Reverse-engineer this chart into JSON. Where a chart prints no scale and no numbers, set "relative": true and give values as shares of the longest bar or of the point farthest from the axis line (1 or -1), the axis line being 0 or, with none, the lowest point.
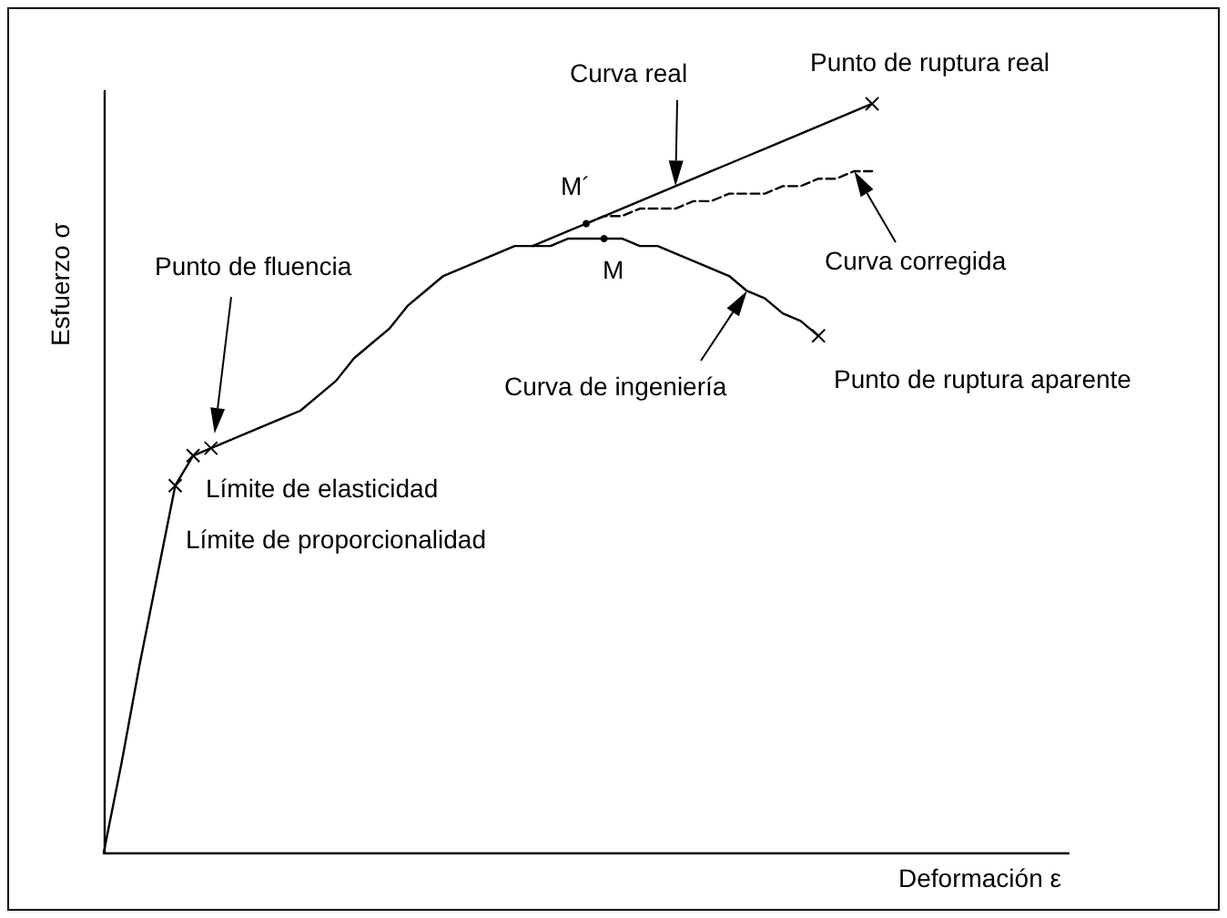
{
  "chart_data": {
    "type": "line",
    "relative": true,
    "xlabel": "Deformación ε",
    "ylabel": "Esfuerzo σ",
    "marker": "none",
    "categories": [
      null,
      null,
      null,
      null,
      null,
      null,
      null,
      null,
      null,
      null,
      null,
      null,
      null,
      null,
      null,
      null,
      null,
      null,
      null,
      null,
      null,
      null,
      null,
      null,
      null,
      null,
      null,
      null,
      null,
      null,
      null,
      null,
      null,
      null,
      null,
      null,
      null,
      null,
      null,
      null,
      null,
      null,
      null,
      null,
      null,
      null,
      null,
      null,
      null,
      null,
      null,
      null,
      null,
      null,
      null
    ],
    "series": [
      {
        "color": "#000000",
        "line_style": "solid",
        "values": [
          0,
          0.12,
          0.25,
          0.37,
          0.49,
          0.53,
          0.54,
          0.55,
          0.56,
          0.57,
          0.58,
          0.59,
          0.61,
          0.63,
          0.66,
          0.68,
          0.7,
          0.73,
          0.75,
          0.77,
          0.78,
          0.79,
          0.8,
          0.81,
          0.81,
          0.81,
          0.82,
          0.82,
          0.82,
          0.82,
          0.81,
          0.81,
          0.8,
          0.79,
          0.78,
          0.77,
          0.75,
          0.74,
          0.72,
          0.71,
          0.69,
          null,
          null,
          null,
          null,
          null,
          null,
          null,
          null,
          null,
          null,
          null,
          null,
          null,
          null
        ]
      },
      {
        "color": "#000000",
        "line_style": "solid",
        "values": [
          null,
          null,
          null,
          null,
          null,
          null,
          null,
          null,
          null,
          null,
          null,
          null,
          null,
          null,
          null,
          null,
          null,
          null,
          null,
          null,
          null,
          null,
          null,
          null,
          0.81,
          0.82,
          0.83,
          0.84,
          0.85,
          0.86,
          0.87,
          0.88,
          0.89,
          0.9,
          0.91,
          0.92,
          0.93,
          0.94,
          0.95,
          0.96,
          0.97,
          0.98,
          0.99,
          1.0,
          null,
          null,
          null,
          null,
          null,
          null,
          null,
          null,
          null,
          null,
          null
        ]
      },
      {
        "color": "#000000",
        "line_style": "dashed",
        "values": [
          null,
          null,
          null,
          null,
          null,
          null,
          null,
          null,
          null,
          null,
          null,
          null,
          null,
          null,
          null,
          null,
          null,
          null,
          null,
          null,
          null,
          null,
          null,
          null,
          null,
          null,
          null,
          0.84,
          0.85,
          0.85,
          0.86,
          0.86,
          0.86,
          0.87,
          0.87,
          0.88,
          0.88,
          0.88,
          0.89,
          0.89,
          0.9,
          0.9,
          0.91,
          0.91,
          null,
          null,
          null,
          null,
          null,
          null,
          null,
          null,
          null,
          null,
          null
        ]
      }
    ],
    "annotations": [
      "Punto de ruptura real",
      "Curva real",
      "M´",
      "M",
      "Curva corregida",
      "Punto de fluencia",
      "Curva de ingeniería",
      "Punto de ruptura aparente",
      "Límite de elasticidad",
      "Límite de proporcionalidad"
    ]
  }
}
